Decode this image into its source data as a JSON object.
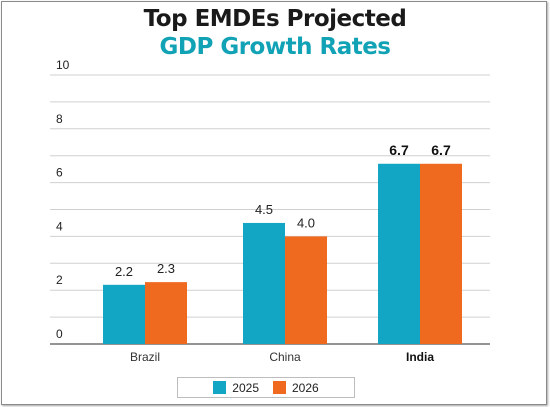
{
  "title_line1": "Top EMDEs Projected",
  "title_line2": "GDP Growth Rates",
  "chart_data": {
    "type": "bar",
    "categories": [
      "Brazil",
      "China",
      "India"
    ],
    "highlight_category": "India",
    "series": [
      {
        "name": "2025",
        "values": [
          2.2,
          4.5,
          6.7
        ],
        "color": "#12a6c4"
      },
      {
        "name": "2026",
        "values": [
          2.3,
          4.0,
          6.7
        ],
        "color": "#ef6a1f"
      }
    ],
    "data_labels": [
      [
        "2.2",
        "4.5",
        "6.7"
      ],
      [
        "2.3",
        "4.0",
        "6.7"
      ]
    ],
    "yticks": [
      "0",
      "2",
      "4",
      "6",
      "8",
      "10"
    ],
    "ylim": [
      0,
      10
    ],
    "grid": true,
    "legend_position": "bottom-center"
  }
}
